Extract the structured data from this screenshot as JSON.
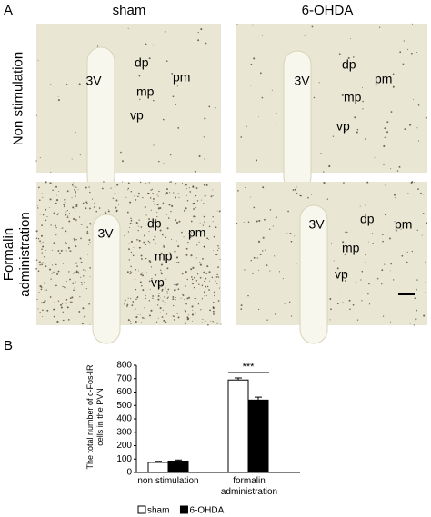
{
  "panel_a": {
    "label": "A",
    "columns": [
      "sham",
      "6-OHDA"
    ],
    "rows": [
      "Non stimulation",
      "Formalin administration"
    ],
    "region_labels": [
      "3V",
      "dp",
      "mp",
      "vp",
      "pm"
    ]
  },
  "chart_data": {
    "type": "bar",
    "panel_label": "B",
    "y_label": "The total number of c-Fos-IR cells in the PVN",
    "categories": [
      "non stimulation",
      "formalin administration"
    ],
    "series": [
      {
        "name": "sham",
        "color": "#ffffff",
        "values": [
          75,
          690
        ],
        "errors": [
          8,
          15
        ]
      },
      {
        "name": "6-OHDA",
        "color": "#000000",
        "values": [
          85,
          540
        ],
        "errors": [
          8,
          22
        ]
      }
    ],
    "ylim": [
      0,
      800
    ],
    "yticks": [
      0,
      100,
      200,
      300,
      400,
      500,
      600,
      700,
      800
    ],
    "annotations": [
      "***"
    ]
  }
}
